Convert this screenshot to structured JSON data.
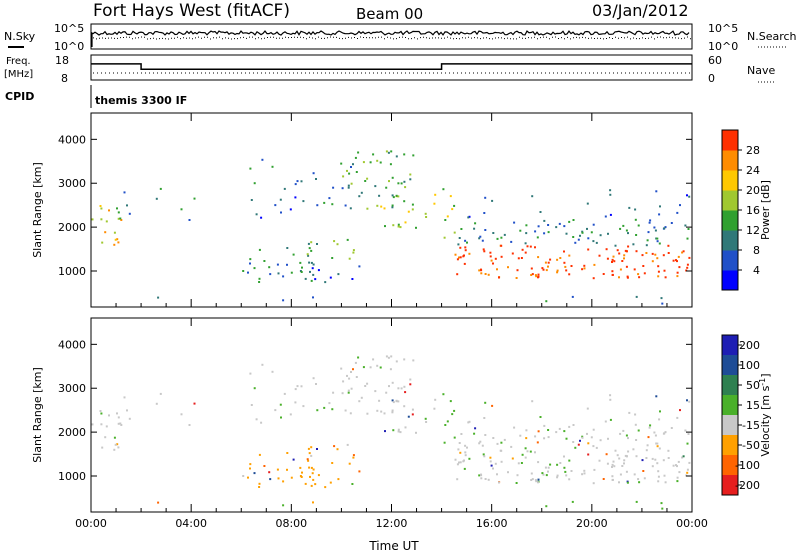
{
  "header": {
    "station": "Fort Hays West (fitACF)",
    "beam": "Beam 00",
    "date": "03/Jan/2012"
  },
  "top_panels": {
    "nsky_label": "N.Sky",
    "nsky_ticks": [
      "10^5",
      "10^0"
    ],
    "nsearch_label": "N.Search",
    "nsearch_ticks": [
      "10^5",
      "10^0"
    ],
    "freq_label_1": "Freq.",
    "freq_label_2": "[MHz]",
    "freq_ticks": [
      "18",
      "8"
    ],
    "nave_label": "Nave",
    "nave_ticks": [
      "60",
      "0"
    ],
    "cpid_label": "CPID",
    "cpid_value": "themis 3300 IF",
    "freq_steps": [
      {
        "from_h": 0,
        "to_h": 2,
        "mhz": 15
      },
      {
        "from_h": 2,
        "to_h": 14,
        "mhz": 12
      },
      {
        "from_h": 14,
        "to_h": 24,
        "mhz": 15
      }
    ]
  },
  "chart_data": [
    {
      "type": "heatmap",
      "quantity": "Power",
      "xlabel": "",
      "ylabel": "Slant Range [km]",
      "x_ticks": [
        "00:00",
        "04:00",
        "08:00",
        "12:00",
        "16:00",
        "20:00",
        "00:00"
      ],
      "xlim_hours": [
        0,
        24
      ],
      "y_ticks": [
        1000,
        2000,
        3000,
        4000
      ],
      "ylim_km": [
        180,
        4600
      ],
      "colorbar_label": "Power [dB]",
      "colorbar_ticks": [
        4,
        8,
        12,
        16,
        20,
        24,
        28
      ],
      "colorbar_range": [
        0,
        32
      ],
      "colors": [
        "#0000ff",
        "#2050c8",
        "#307878",
        "#30a030",
        "#a0c830",
        "#ffc800",
        "#ff8c00",
        "#ff3000"
      ]
    },
    {
      "type": "heatmap",
      "quantity": "Velocity",
      "xlabel": "Time UT",
      "ylabel": "Slant Range [km]",
      "x_ticks": [
        "00:00",
        "04:00",
        "08:00",
        "12:00",
        "16:00",
        "20:00",
        "00:00"
      ],
      "xlim_hours": [
        0,
        24
      ],
      "y_ticks": [
        1000,
        2000,
        3000,
        4000
      ],
      "ylim_km": [
        180,
        4600
      ],
      "colorbar_label": "Velocity [m s",
      "colorbar_label_sup": "-1",
      "colorbar_label_end": "]",
      "colorbar_ticks": [
        "200",
        "100",
        "50",
        "15",
        "-15",
        "-50",
        "-100",
        "-200"
      ],
      "colors": [
        "#1e1eb4",
        "#1e4c96",
        "#2e8050",
        "#4ab02a",
        "#c8c8c8",
        "#ffa000",
        "#ff6400",
        "#e61e1e"
      ]
    }
  ]
}
